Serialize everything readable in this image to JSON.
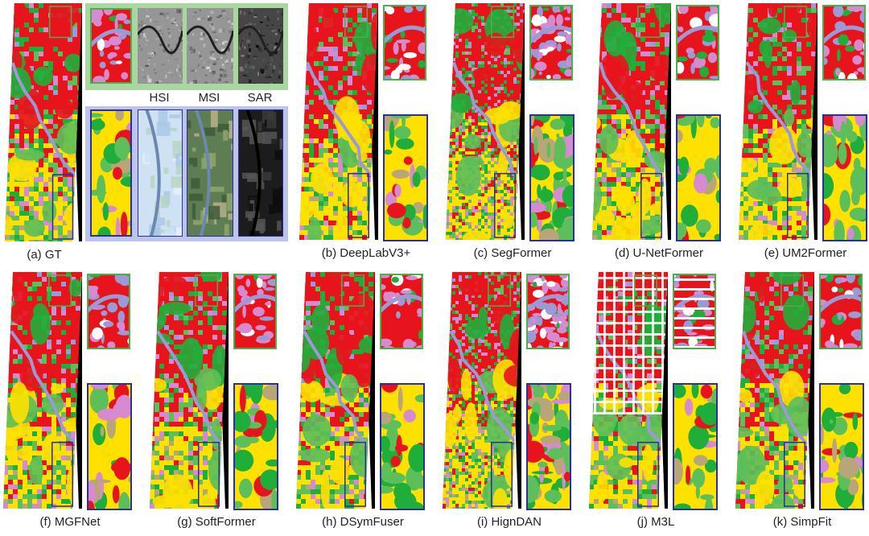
{
  "figure": {
    "modality_labels": [
      "HSI",
      "MSI",
      "SAR"
    ],
    "panels": [
      {
        "id": "a",
        "caption": "(a) GT",
        "mode": "dense"
      },
      {
        "id": "b",
        "caption": "(b) DeepLabV3+",
        "mode": "dense"
      },
      {
        "id": "c",
        "caption": "(c) SegFormer",
        "mode": "speckle"
      },
      {
        "id": "d",
        "caption": "(d) U-NetFormer",
        "mode": "dense"
      },
      {
        "id": "e",
        "caption": "(e) UM2Former",
        "mode": "dense"
      },
      {
        "id": "f",
        "caption": "(f) MGFNet",
        "mode": "dense"
      },
      {
        "id": "g",
        "caption": "(g) SoftFormer",
        "mode": "dense"
      },
      {
        "id": "h",
        "caption": "(h) DSymFuser",
        "mode": "dense"
      },
      {
        "id": "i",
        "caption": "(i) HignDAN",
        "mode": "speckle"
      },
      {
        "id": "j",
        "caption": "(j) M3L",
        "mode": "grid"
      },
      {
        "id": "k",
        "caption": "(k) SimpFit",
        "mode": "dense"
      }
    ],
    "class_colors": {
      "urban": "#e8141c",
      "crop": "#ffe100",
      "forest": "#1fae3a",
      "grass": "#5cbf5a",
      "water": "#9a9ad6",
      "industry": "#d68ad0",
      "bare": "#b9a678",
      "road": "#ffffff",
      "nodata": "#000000"
    },
    "frame_colors": {
      "top_zoom": "#4cae4c",
      "bottom_zoom": "#2b2f9a",
      "legend_green_panel": "#a8d8a0",
      "legend_blue_panel": "#bcc4ec"
    }
  }
}
